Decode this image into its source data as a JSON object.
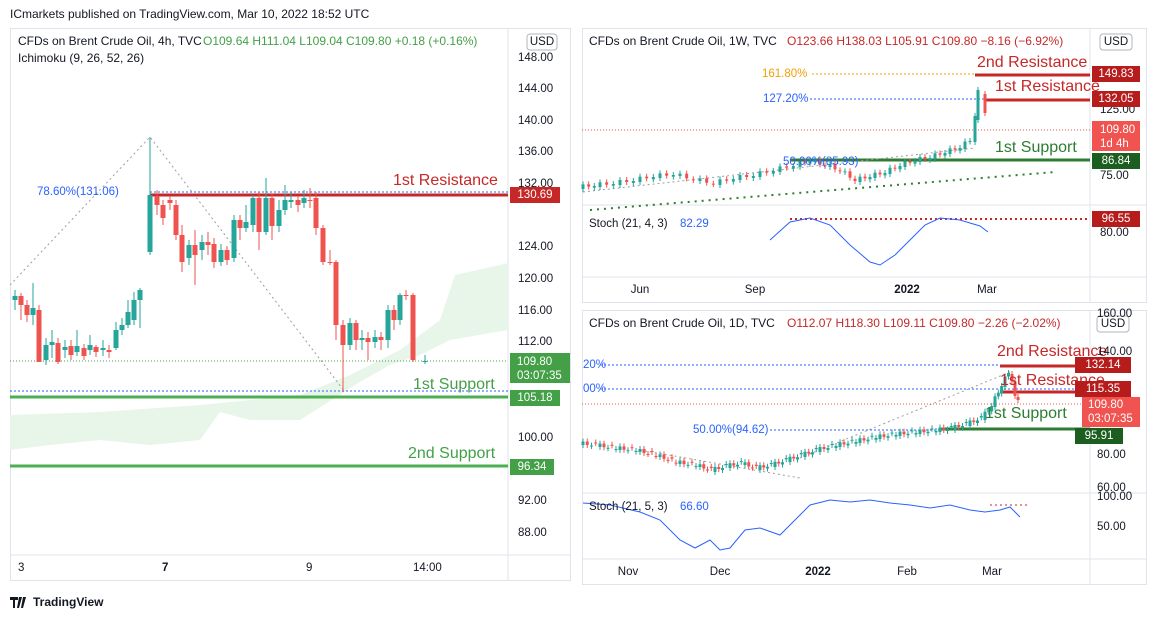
{
  "header": "ICmarkets published on TradingView.com, Mar 10, 2022 18:52 UTC",
  "footer": "TradingView",
  "panels": [
    {
      "symbol": "CFDs on Brent Crude Oil, 4h, TVC",
      "ohlc": "O109.64 H111.04 L109.04 C109.80 +0.18 (+0.16%)",
      "indicator": "Ichimoku (9, 26, 52, 26)",
      "currency": "USD",
      "price_ticks": [
        "148.00",
        "144.00",
        "140.00",
        "136.00",
        "132.00",
        "124.00",
        "120.00",
        "116.00",
        "112.00",
        "100.00",
        "92.00",
        "88.00"
      ],
      "time_ticks": [
        "3",
        "7",
        "9",
        "14:00"
      ],
      "price_labels": [
        {
          "price": "130.69"
        },
        {
          "price": "109.80",
          "countdown": "03:07:35"
        },
        {
          "price": "105.18"
        },
        {
          "price": "96.34"
        }
      ],
      "annotations": {
        "resistance_1": "1st Resistance",
        "support_1": "1st Support",
        "support_2": "2nd Support",
        "fib": "78.60%(131.06)"
      }
    },
    {
      "symbol": "CFDs on Brent Crude Oil, 1W, TVC",
      "ohlc": "O123.66 H138.03 L105.91 C109.80 −8.16 (−6.92%)",
      "currency": "USD",
      "price_ticks": [
        "125.00",
        "75.00"
      ],
      "stoch_ticks": [
        "80.00"
      ],
      "time_ticks": [
        "Jun",
        "Sep",
        "2022",
        "Mar"
      ],
      "price_labels": [
        {
          "price": "149.83"
        },
        {
          "price": "132.05"
        },
        {
          "price": "109.80",
          "countdown": "1d 4h"
        },
        {
          "price": "86.84"
        },
        {
          "price": "96.55"
        }
      ],
      "annotations": {
        "resistance_2": "2nd Resistance",
        "resistance_1": "1st Resistance",
        "support_1": "1st Support",
        "fib_1618": "161.80%",
        "fib_1272": "127.20%",
        "fib_50": "50.00%(85.93)"
      },
      "stoch": {
        "name": "Stoch (21, 4, 3)",
        "value": "82.29"
      }
    },
    {
      "symbol": "CFDs on Brent Crude Oil, 1D, TVC",
      "ohlc": "O112.07 H118.30 L109.11 C109.80 −2.26 (−2.02%)",
      "currency": "USD",
      "price_ticks": [
        "160.00",
        "140.00",
        "80.00",
        "60.00"
      ],
      "stoch_ticks": [
        "100.00",
        "50.00"
      ],
      "time_ticks": [
        "Nov",
        "Dec",
        "2022",
        "Feb",
        "Mar"
      ],
      "price_labels": [
        {
          "price": "132.14"
        },
        {
          "price": "115.35"
        },
        {
          "price": "109.80",
          "countdown": "03:07:35"
        },
        {
          "price": "95.91"
        }
      ],
      "annotations": {
        "resistance_2": "2nd Resistance",
        "resistance_1": "1st Resistance",
        "support_1": "1st Support",
        "fib_a": "20%",
        "fib_b": "00%",
        "fib_50": "50.00%(94.62)"
      },
      "stoch": {
        "name": "Stoch (21, 5, 3)",
        "value": "66.60"
      }
    }
  ]
}
